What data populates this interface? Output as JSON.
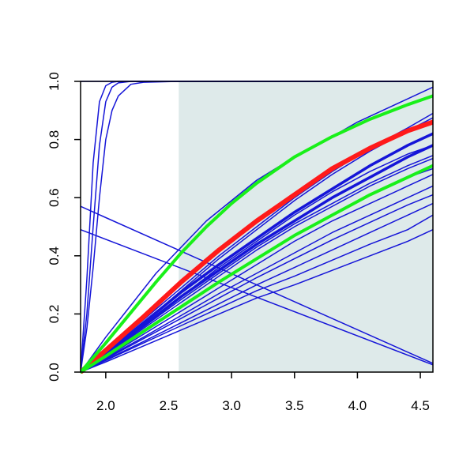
{
  "chart_data": {
    "type": "line",
    "title": "",
    "xlabel": "",
    "ylabel": "",
    "xlim": [
      1.8,
      4.6
    ],
    "ylim": [
      0.0,
      1.0
    ],
    "x_ticks": [
      2.0,
      2.5,
      3.0,
      3.5,
      4.0,
      4.5
    ],
    "x_tick_labels": [
      "2.0",
      "2.5",
      "3.0",
      "3.5",
      "4.0",
      "4.5"
    ],
    "y_ticks": [
      0.0,
      0.2,
      0.4,
      0.6,
      0.8,
      1.0
    ],
    "y_tick_labels": [
      "0.0",
      "0.2",
      "0.4",
      "0.6",
      "0.8",
      "1.0"
    ],
    "grid": false,
    "legend": "none",
    "shaded_region": {
      "x": [
        2.58,
        4.6
      ],
      "y": [
        0.0,
        1.0
      ],
      "color": "#deeaea"
    },
    "colors": {
      "blue": "#1515d8",
      "red": "#ff1a1a",
      "green": "#19f019"
    },
    "series": [
      {
        "x": [
          1.8,
          1.85,
          1.9,
          1.95,
          2.0,
          2.05,
          2.1,
          2.2,
          2.3,
          2.58,
          4.6
        ],
        "values": [
          0.0,
          0.32,
          0.72,
          0.93,
          0.985,
          0.997,
          1.0,
          1.0,
          1.0,
          1.0,
          1.0
        ],
        "color": "blue",
        "width": 1.5
      },
      {
        "x": [
          1.8,
          1.85,
          1.9,
          1.95,
          2.0,
          2.05,
          2.1,
          2.2,
          2.3,
          2.58,
          4.6
        ],
        "values": [
          0.0,
          0.2,
          0.5,
          0.78,
          0.93,
          0.98,
          0.995,
          1.0,
          1.0,
          1.0,
          1.0
        ],
        "color": "blue",
        "width": 1.5
      },
      {
        "x": [
          1.8,
          1.85,
          1.9,
          1.95,
          2.0,
          2.05,
          2.1,
          2.2,
          2.3,
          2.58,
          4.6
        ],
        "values": [
          0.0,
          0.15,
          0.36,
          0.6,
          0.8,
          0.9,
          0.95,
          0.99,
          0.997,
          1.0,
          1.0
        ],
        "color": "blue",
        "width": 1.5
      },
      {
        "x": [
          1.8,
          2.58,
          4.6
        ],
        "values": [
          1.0,
          1.0,
          1.0
        ],
        "color": "blue",
        "width": 1.5
      },
      {
        "x": [
          1.8,
          2.0,
          2.2,
          2.4,
          2.6,
          2.8,
          3.0,
          3.2,
          3.5,
          3.8,
          4.0,
          4.3,
          4.6
        ],
        "values": [
          0.0,
          0.12,
          0.23,
          0.34,
          0.43,
          0.52,
          0.59,
          0.66,
          0.74,
          0.81,
          0.86,
          0.92,
          0.98
        ],
        "color": "blue",
        "width": 1.5
      },
      {
        "x": [
          1.8,
          2.0,
          2.3,
          2.6,
          2.9,
          3.2,
          3.5,
          3.8,
          4.1,
          4.4,
          4.6
        ],
        "values": [
          0.0,
          0.07,
          0.18,
          0.29,
          0.4,
          0.5,
          0.6,
          0.69,
          0.77,
          0.84,
          0.89
        ],
        "color": "blue",
        "width": 1.5
      },
      {
        "x": [
          1.8,
          2.0,
          2.3,
          2.6,
          2.9,
          3.2,
          3.5,
          3.8,
          4.1,
          4.4,
          4.6
        ],
        "values": [
          0.0,
          0.065,
          0.17,
          0.28,
          0.39,
          0.49,
          0.59,
          0.68,
          0.76,
          0.83,
          0.875
        ],
        "color": "blue",
        "width": 1.5
      },
      {
        "x": [
          1.8,
          2.0,
          2.3,
          2.6,
          2.9,
          3.2,
          3.5,
          3.8,
          4.1,
          4.4,
          4.6
        ],
        "values": [
          0.0,
          0.06,
          0.16,
          0.26,
          0.36,
          0.45,
          0.54,
          0.62,
          0.69,
          0.75,
          0.78
        ],
        "color": "blue",
        "width": 1.5
      },
      {
        "x": [
          1.8,
          2.0,
          2.3,
          2.6,
          2.9,
          3.2,
          3.5,
          3.8,
          4.1,
          4.4,
          4.6
        ],
        "values": [
          0.0,
          0.06,
          0.155,
          0.25,
          0.34,
          0.43,
          0.51,
          0.58,
          0.65,
          0.71,
          0.745
        ],
        "color": "blue",
        "width": 1.5
      },
      {
        "x": [
          1.8,
          2.0,
          2.3,
          2.6,
          2.9,
          3.2,
          3.5,
          3.8,
          4.1,
          4.4,
          4.6
        ],
        "values": [
          0.0,
          0.058,
          0.15,
          0.24,
          0.33,
          0.42,
          0.5,
          0.57,
          0.64,
          0.7,
          0.735
        ],
        "color": "blue",
        "width": 1.5
      },
      {
        "x": [
          1.8,
          2.0,
          2.3,
          2.6,
          2.9,
          3.2,
          3.5,
          3.8,
          4.1,
          4.4,
          4.6
        ],
        "values": [
          0.0,
          0.055,
          0.14,
          0.225,
          0.31,
          0.39,
          0.47,
          0.54,
          0.61,
          0.67,
          0.7
        ],
        "color": "blue",
        "width": 1.5
      },
      {
        "x": [
          1.8,
          2.0,
          2.3,
          2.6,
          2.9,
          3.2,
          3.5,
          3.8,
          4.1,
          4.4,
          4.6
        ],
        "values": [
          0.0,
          0.05,
          0.13,
          0.21,
          0.29,
          0.37,
          0.45,
          0.52,
          0.58,
          0.64,
          0.68
        ],
        "color": "blue",
        "width": 1.5
      },
      {
        "x": [
          1.8,
          2.0,
          2.3,
          2.6,
          2.9,
          3.2,
          3.5,
          3.8,
          4.1,
          4.4,
          4.6
        ],
        "values": [
          0.0,
          0.048,
          0.12,
          0.195,
          0.27,
          0.34,
          0.41,
          0.48,
          0.54,
          0.6,
          0.64
        ],
        "color": "blue",
        "width": 1.5
      },
      {
        "x": [
          1.8,
          2.0,
          2.3,
          2.6,
          2.9,
          3.2,
          3.5,
          3.8,
          4.1,
          4.4,
          4.6
        ],
        "values": [
          0.0,
          0.045,
          0.115,
          0.185,
          0.255,
          0.325,
          0.39,
          0.455,
          0.515,
          0.575,
          0.61
        ],
        "color": "blue",
        "width": 1.5
      },
      {
        "x": [
          1.8,
          2.0,
          2.3,
          2.6,
          2.9,
          3.2,
          3.5,
          3.8,
          4.1,
          4.4,
          4.6
        ],
        "values": [
          0.0,
          0.042,
          0.105,
          0.17,
          0.235,
          0.3,
          0.36,
          0.42,
          0.48,
          0.54,
          0.58
        ],
        "color": "blue",
        "width": 1.5
      },
      {
        "x": [
          1.8,
          2.0,
          2.3,
          2.6,
          2.9,
          3.2,
          3.5,
          3.8,
          4.1,
          4.4,
          4.6
        ],
        "values": [
          0.0,
          0.04,
          0.1,
          0.16,
          0.22,
          0.28,
          0.33,
          0.385,
          0.44,
          0.49,
          0.54
        ],
        "color": "blue",
        "width": 1.5
      },
      {
        "x": [
          1.8,
          2.0,
          2.3,
          2.6,
          2.9,
          3.2,
          3.5,
          3.8,
          4.1,
          4.4,
          4.6
        ],
        "values": [
          0.0,
          0.035,
          0.09,
          0.145,
          0.2,
          0.255,
          0.3,
          0.35,
          0.4,
          0.45,
          0.49
        ],
        "color": "blue",
        "width": 1.5
      },
      {
        "x": [
          1.8,
          4.6
        ],
        "values": [
          0.57,
          0.03
        ],
        "color": "blue",
        "width": 1.5
      },
      {
        "x": [
          1.8,
          4.6
        ],
        "values": [
          0.49,
          0.025
        ],
        "color": "blue",
        "width": 1.5
      },
      {
        "x": [
          1.8,
          2.0,
          2.3,
          2.6,
          2.9,
          3.2,
          3.5,
          3.8,
          4.1,
          4.4,
          4.6
        ],
        "values": [
          0.0,
          0.065,
          0.17,
          0.275,
          0.37,
          0.46,
          0.55,
          0.63,
          0.71,
          0.78,
          0.82
        ],
        "color": "blue",
        "width": 3.5
      },
      {
        "x": [
          1.8,
          2.0,
          2.3,
          2.6,
          2.9,
          3.2,
          3.5,
          3.8,
          4.1,
          4.4,
          4.6
        ],
        "values": [
          0.0,
          0.062,
          0.16,
          0.26,
          0.35,
          0.44,
          0.52,
          0.6,
          0.67,
          0.74,
          0.78
        ],
        "color": "blue",
        "width": 3.5
      },
      {
        "x": [
          1.8,
          2.0,
          2.3,
          2.6,
          2.9,
          3.2,
          3.5,
          3.8,
          4.1,
          4.4,
          4.6
        ],
        "values": [
          0.0,
          0.075,
          0.19,
          0.31,
          0.42,
          0.52,
          0.61,
          0.7,
          0.77,
          0.83,
          0.86
        ],
        "color": "red",
        "width": 6
      },
      {
        "x": [
          1.8,
          2.0,
          2.2,
          2.4,
          2.6,
          2.8,
          3.0,
          3.2,
          3.5,
          3.8,
          4.1,
          4.4,
          4.6
        ],
        "values": [
          0.0,
          0.1,
          0.205,
          0.31,
          0.41,
          0.5,
          0.58,
          0.65,
          0.74,
          0.81,
          0.87,
          0.92,
          0.95
        ],
        "color": "green",
        "width": 4
      },
      {
        "x": [
          1.8,
          2.0,
          2.3,
          2.6,
          2.9,
          3.2,
          3.5,
          3.8,
          4.1,
          4.4,
          4.6
        ],
        "values": [
          0.0,
          0.055,
          0.14,
          0.225,
          0.31,
          0.39,
          0.47,
          0.54,
          0.61,
          0.67,
          0.71
        ],
        "color": "green",
        "width": 4
      }
    ]
  }
}
